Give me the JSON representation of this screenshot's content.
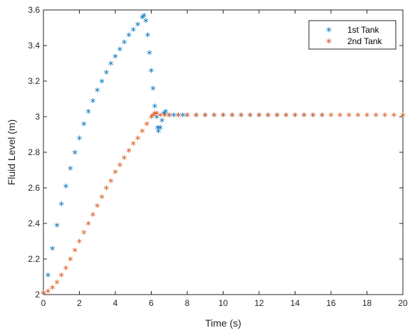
{
  "chart_data": {
    "type": "scatter",
    "xlabel": "Time (s)",
    "ylabel": "Fluid Level (m)",
    "xlim": [
      0,
      20
    ],
    "ylim": [
      2,
      3.6
    ],
    "x_ticks": [
      0,
      2,
      4,
      6,
      8,
      10,
      12,
      14,
      16,
      18,
      20
    ],
    "y_ticks": [
      2,
      2.2,
      2.4,
      2.6,
      2.8,
      3,
      3.2,
      3.4,
      3.6
    ],
    "grid": false,
    "legend_position": "top-right",
    "marker": "*",
    "series": [
      {
        "name": "1st Tank",
        "color": "#0072BD",
        "x": [
          0,
          0.25,
          0.5,
          0.75,
          1,
          1.25,
          1.5,
          1.75,
          2,
          2.25,
          2.5,
          2.75,
          3,
          3.25,
          3.5,
          3.75,
          4,
          4.25,
          4.5,
          4.75,
          5,
          5.25,
          5.5,
          5.6,
          5.7,
          5.8,
          5.9,
          6.0,
          6.1,
          6.2,
          6.3,
          6.35,
          6.4,
          6.5,
          6.6,
          6.7,
          6.8,
          7,
          7.25,
          7.5,
          7.75,
          8,
          8.5,
          9,
          9.5,
          10,
          10.5,
          11,
          11.5,
          12,
          12.5,
          13,
          13.5,
          14,
          14.5,
          15,
          15.5
        ],
        "y": [
          2.0,
          2.1,
          2.25,
          2.38,
          2.5,
          2.6,
          2.7,
          2.79,
          2.87,
          2.95,
          3.02,
          3.08,
          3.14,
          3.19,
          3.24,
          3.29,
          3.33,
          3.37,
          3.41,
          3.45,
          3.48,
          3.51,
          3.55,
          3.56,
          3.53,
          3.45,
          3.35,
          3.25,
          3.15,
          3.05,
          2.99,
          2.93,
          2.91,
          2.93,
          2.97,
          3.01,
          3.02,
          3.0,
          3.0,
          3.0,
          3.0,
          3.0,
          3.0,
          3.0,
          3.0,
          3.0,
          3.0,
          3.0,
          3.0,
          3.0,
          3.0,
          3.0,
          3.0,
          3.0,
          3.0,
          3.0,
          3.0
        ]
      },
      {
        "name": "2nd Tank",
        "color": "#D95319",
        "x": [
          0,
          0.25,
          0.5,
          0.75,
          1,
          1.25,
          1.5,
          1.75,
          2,
          2.25,
          2.5,
          2.75,
          3,
          3.25,
          3.5,
          3.75,
          4,
          4.25,
          4.5,
          4.75,
          5,
          5.25,
          5.5,
          5.75,
          6,
          6.1,
          6.2,
          6.3,
          6.5,
          6.75,
          7,
          7.5,
          8,
          8.5,
          9,
          9.5,
          10,
          10.5,
          11,
          11.5,
          12,
          12.5,
          13,
          13.5,
          14,
          14.5,
          15,
          15.5,
          16,
          16.5,
          17,
          17.5,
          18,
          18.5,
          19,
          19.5,
          20
        ],
        "y": [
          2.0,
          2.01,
          2.03,
          2.06,
          2.1,
          2.14,
          2.19,
          2.24,
          2.29,
          2.34,
          2.39,
          2.44,
          2.49,
          2.54,
          2.59,
          2.63,
          2.68,
          2.72,
          2.76,
          2.8,
          2.84,
          2.87,
          2.91,
          2.95,
          2.99,
          3.0,
          3.01,
          3.01,
          3.0,
          3.0,
          3.0,
          3.0,
          3.0,
          3.0,
          3.0,
          3.0,
          3.0,
          3.0,
          3.0,
          3.0,
          3.0,
          3.0,
          3.0,
          3.0,
          3.0,
          3.0,
          3.0,
          3.0,
          3.0,
          3.0,
          3.0,
          3.0,
          3.0,
          3.0,
          3.0,
          3.0,
          3.0
        ]
      }
    ]
  }
}
